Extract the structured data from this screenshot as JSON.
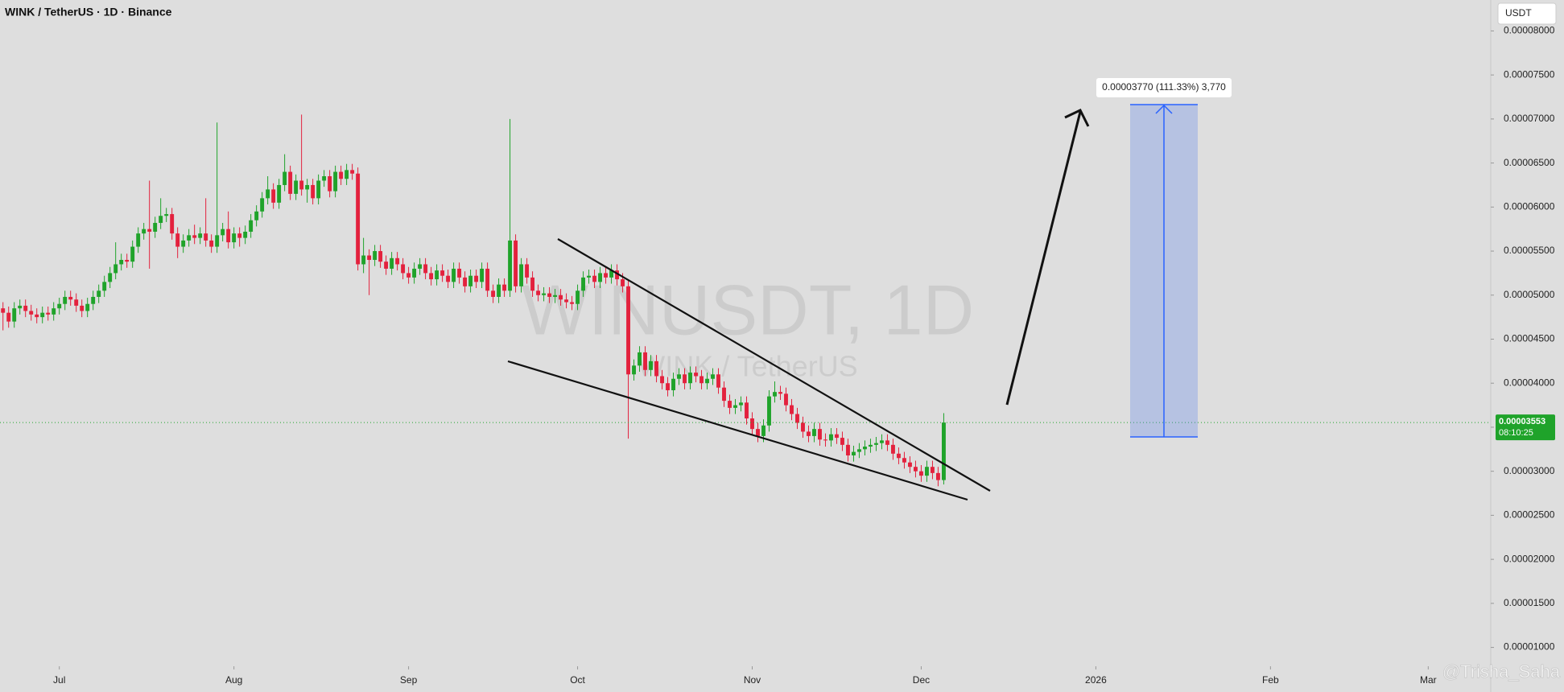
{
  "header": {
    "title": "WINK / TetherUS · 1D · Binance",
    "currency": "USDT"
  },
  "chart_data": {
    "type": "candlestick",
    "watermark": "WINUSDT, 1D",
    "watermark_sub": "WINK / TetherUS",
    "measure_label": "0.00003770 (111.33%) 3,770",
    "countdown": "08:10:25",
    "up_color": "#1fa32a",
    "down_color": "#e3213d",
    "xlim": [
      -0.53,
      264.1
    ],
    "xticks": [
      {
        "value": 10,
        "label": "Jul"
      },
      {
        "value": 41,
        "label": "Aug"
      },
      {
        "value": 72,
        "label": "Sep"
      },
      {
        "value": 102,
        "label": "Oct"
      },
      {
        "value": 133,
        "label": "Nov"
      },
      {
        "value": 163,
        "label": "Dec"
      },
      {
        "value": 194,
        "label": "2026"
      },
      {
        "value": 225,
        "label": "Feb"
      },
      {
        "value": 253,
        "label": "Mar"
      }
    ],
    "ylim": [
      7.86e-06,
      8.351e-05
    ],
    "yticks": [
      {
        "value": 8e-05,
        "label": "0.00008000"
      },
      {
        "value": 7.5e-05,
        "label": "0.00007500"
      },
      {
        "value": 7e-05,
        "label": "0.00007000"
      },
      {
        "value": 6.5e-05,
        "label": "0.00006500"
      },
      {
        "value": 6e-05,
        "label": "0.00006000"
      },
      {
        "value": 5.5e-05,
        "label": "0.00005500"
      },
      {
        "value": 5e-05,
        "label": "0.00005000"
      },
      {
        "value": 4.5e-05,
        "label": "0.00004500"
      },
      {
        "value": 4e-05,
        "label": "0.00004000"
      },
      {
        "value": 3.5e-05,
        "label": "0.00003500"
      },
      {
        "value": 3e-05,
        "label": "0.00003000"
      },
      {
        "value": 2.5e-05,
        "label": "0.00002500"
      },
      {
        "value": 2e-05,
        "label": "0.00002000"
      },
      {
        "value": 1.5e-05,
        "label": "0.00001500"
      },
      {
        "value": 1e-05,
        "label": "0.00001000"
      }
    ],
    "series": [
      {
        "open": [
          4.85e-05,
          4.8e-05,
          4.7e-05,
          4.85e-05,
          4.88e-05,
          4.82e-05,
          4.78e-05,
          4.75e-05,
          4.8e-05,
          4.78e-05,
          4.85e-05,
          4.9e-05,
          4.98e-05,
          4.95e-05,
          4.88e-05,
          4.82e-05,
          4.9e-05,
          4.98e-05,
          5.05e-05,
          5.15e-05,
          5.25e-05,
          5.35e-05,
          5.4e-05,
          5.38e-05,
          5.55e-05,
          5.7e-05,
          5.75e-05,
          5.72e-05,
          5.82e-05,
          5.9e-05,
          5.92e-05,
          5.7e-05,
          5.55e-05,
          5.62e-05,
          5.68e-05,
          5.65e-05,
          5.7e-05,
          5.62e-05,
          5.55e-05,
          5.68e-05,
          5.75e-05,
          5.6e-05,
          5.7e-05,
          5.65e-05,
          5.72e-05,
          5.85e-05,
          5.95e-05,
          6.1e-05,
          6.2e-05,
          6.05e-05,
          6.25e-05,
          6.4e-05,
          6.15e-05,
          6.3e-05,
          6.2e-05,
          6.25e-05,
          6.1e-05,
          6.3e-05,
          6.35e-05,
          6.18e-05,
          6.4e-05,
          6.32e-05,
          6.42e-05,
          6.38e-05,
          5.35e-05,
          5.45e-05,
          5.4e-05,
          5.5e-05,
          5.38e-05,
          5.3e-05,
          5.42e-05,
          5.35e-05,
          5.25e-05,
          5.2e-05,
          5.3e-05,
          5.35e-05,
          5.25e-05,
          5.18e-05,
          5.28e-05,
          5.22e-05,
          5.15e-05,
          5.3e-05,
          5.2e-05,
          5.1e-05,
          5.22e-05,
          5.15e-05,
          5.3e-05,
          5.05e-05,
          4.98e-05,
          5.12e-05,
          5.05e-05,
          5.62e-05,
          5.1e-05,
          5.35e-05,
          5.2e-05,
          5.05e-05,
          5e-05,
          5.02e-05,
          4.98e-05,
          5e-05,
          4.95e-05,
          4.92e-05,
          4.9e-05,
          5.05e-05,
          5.2e-05,
          5.22e-05,
          5.15e-05,
          5.25e-05,
          5.2e-05,
          5.28e-05,
          5.18e-05,
          5.1e-05,
          4.1e-05,
          4.2e-05,
          4.35e-05,
          4.15e-05,
          4.25e-05,
          4.08e-05,
          4e-05,
          3.92e-05,
          4.05e-05,
          4.1e-05,
          4e-05,
          4.12e-05,
          4.08e-05,
          4e-05,
          4.05e-05,
          4.1e-05,
          3.95e-05,
          3.8e-05,
          3.72e-05,
          3.75e-05,
          3.78e-05,
          3.6e-05,
          3.48e-05,
          3.4e-05,
          3.52e-05,
          3.85e-05,
          3.9e-05,
          3.88e-05,
          3.75e-05,
          3.65e-05,
          3.55e-05,
          3.45e-05,
          3.4e-05,
          3.48e-05,
          3.36e-05,
          3.35e-05,
          3.42e-05,
          3.38e-05,
          3.3e-05,
          3.18e-05,
          3.22e-05,
          3.25e-05,
          3.28e-05,
          3.3e-05,
          3.32e-05,
          3.35e-05,
          3.3e-05,
          3.2e-05,
          3.15e-05,
          3.1e-05,
          3.05e-05,
          3e-05,
          2.95e-05,
          3.05e-05,
          2.98e-05,
          2.9e-05
        ],
        "high": [
          4.92e-05,
          4.87e-05,
          4.92e-05,
          4.95e-05,
          4.95e-05,
          4.89e-05,
          4.85e-05,
          4.87e-05,
          4.87e-05,
          4.92e-05,
          4.97e-05,
          5.05e-05,
          5.05e-05,
          5.02e-05,
          4.95e-05,
          4.97e-05,
          5.05e-05,
          5.12e-05,
          5.22e-05,
          5.32e-05,
          5.6e-05,
          5.47e-05,
          5.47e-05,
          5.62e-05,
          5.77e-05,
          5.82e-05,
          6.3e-05,
          5.89e-05,
          6.1e-05,
          5.99e-05,
          5.99e-05,
          5.77e-05,
          5.69e-05,
          5.75e-05,
          5.8e-05,
          5.77e-05,
          6.1e-05,
          5.69e-05,
          6.96e-05,
          5.82e-05,
          5.95e-05,
          5.77e-05,
          5.77e-05,
          5.79e-05,
          5.92e-05,
          6.02e-05,
          6.17e-05,
          6.35e-05,
          6.27e-05,
          6.32e-05,
          6.6e-05,
          6.47e-05,
          6.37e-05,
          7.05e-05,
          6.32e-05,
          6.32e-05,
          6.37e-05,
          6.42e-05,
          6.42e-05,
          6.47e-05,
          6.47e-05,
          6.49e-05,
          6.49e-05,
          6.45e-05,
          5.65e-05,
          5.52e-05,
          5.57e-05,
          5.57e-05,
          5.45e-05,
          5.49e-05,
          5.49e-05,
          5.42e-05,
          5.32e-05,
          5.37e-05,
          5.42e-05,
          5.42e-05,
          5.32e-05,
          5.35e-05,
          5.35e-05,
          5.29e-05,
          5.37e-05,
          5.37e-05,
          5.27e-05,
          5.29e-05,
          5.29e-05,
          5.37e-05,
          5.37e-05,
          5.12e-05,
          5.19e-05,
          5.19e-05,
          7e-05,
          5.69e-05,
          5.42e-05,
          5.42e-05,
          5.27e-05,
          5.12e-05,
          5.09e-05,
          5.09e-05,
          5.07e-05,
          5.07e-05,
          5.02e-05,
          4.99e-05,
          5.12e-05,
          5.27e-05,
          5.29e-05,
          5.29e-05,
          5.32e-05,
          5.32e-05,
          5.35e-05,
          5.35e-05,
          5.25e-05,
          5.17e-05,
          4.27e-05,
          4.42e-05,
          4.42e-05,
          4.32e-05,
          4.32e-05,
          4.15e-05,
          4.07e-05,
          4.12e-05,
          4.17e-05,
          4.17e-05,
          4.19e-05,
          4.19e-05,
          4.15e-05,
          4.12e-05,
          4.17e-05,
          4.17e-05,
          4.02e-05,
          3.87e-05,
          3.82e-05,
          3.85e-05,
          3.85e-05,
          3.67e-05,
          3.55e-05,
          3.59e-05,
          3.92e-05,
          4.02e-05,
          3.97e-05,
          3.95e-05,
          3.82e-05,
          3.72e-05,
          3.62e-05,
          3.52e-05,
          3.55e-05,
          3.55e-05,
          3.43e-05,
          3.49e-05,
          3.49e-05,
          3.45e-05,
          3.37e-05,
          3.29e-05,
          3.32e-05,
          3.35e-05,
          3.37e-05,
          3.39e-05,
          3.42e-05,
          3.42e-05,
          3.37e-05,
          3.27e-05,
          3.22e-05,
          3.17e-05,
          3.12e-05,
          3.07e-05,
          3.12e-05,
          3.12e-05,
          3.05e-05,
          3.66e-05
        ],
        "low": [
          4.6e-05,
          4.63e-05,
          4.63e-05,
          4.78e-05,
          4.75e-05,
          4.71e-05,
          4.68e-05,
          4.68e-05,
          4.71e-05,
          4.71e-05,
          4.78e-05,
          4.83e-05,
          4.88e-05,
          4.81e-05,
          4.75e-05,
          4.75e-05,
          4.83e-05,
          4.91e-05,
          4.98e-05,
          5.08e-05,
          5.18e-05,
          5.28e-05,
          5.31e-05,
          5.31e-05,
          5.48e-05,
          5.63e-05,
          5.3e-05,
          5.65e-05,
          5.75e-05,
          5.83e-05,
          5.63e-05,
          5.42e-05,
          5.48e-05,
          5.55e-05,
          5.58e-05,
          5.58e-05,
          5.55e-05,
          5.48e-05,
          5.48e-05,
          5.61e-05,
          5.53e-05,
          5.53e-05,
          5.55e-05,
          5.58e-05,
          5.65e-05,
          5.78e-05,
          5.88e-05,
          6.03e-05,
          5.98e-05,
          5.98e-05,
          6.18e-05,
          6.08e-05,
          6.08e-05,
          6.13e-05,
          6.05e-05,
          6.03e-05,
          6.03e-05,
          6.23e-05,
          6.11e-05,
          6.11e-05,
          6.25e-05,
          6.25e-05,
          6.31e-05,
          5.28e-05,
          5.25e-05,
          5e-05,
          5.33e-05,
          5.31e-05,
          5.23e-05,
          5.23e-05,
          5.28e-05,
          5.18e-05,
          5.13e-05,
          5.13e-05,
          5.23e-05,
          5.18e-05,
          5.11e-05,
          5.11e-05,
          5.15e-05,
          5.08e-05,
          5.08e-05,
          5.13e-05,
          5.03e-05,
          5.03e-05,
          5.08e-05,
          5.08e-05,
          4.98e-05,
          4.91e-05,
          4.91e-05,
          4.98e-05,
          4.98e-05,
          5.03e-05,
          5.03e-05,
          5.13e-05,
          4.98e-05,
          4.93e-05,
          4.93e-05,
          4.91e-05,
          4.91e-05,
          4.88e-05,
          4.85e-05,
          4.83e-05,
          4.83e-05,
          4.98e-05,
          5.13e-05,
          5.08e-05,
          5.08e-05,
          5.13e-05,
          5.13e-05,
          5.11e-05,
          5.03e-05,
          3.37e-05,
          4.03e-05,
          4.13e-05,
          4.08e-05,
          4.08e-05,
          4.01e-05,
          3.93e-05,
          3.85e-05,
          3.85e-05,
          3.98e-05,
          3.93e-05,
          3.93e-05,
          4.01e-05,
          3.93e-05,
          3.93e-05,
          3.98e-05,
          3.88e-05,
          3.73e-05,
          3.65e-05,
          3.65e-05,
          3.68e-05,
          3.53e-05,
          3.41e-05,
          3.33e-05,
          3.33e-05,
          3.45e-05,
          3.78e-05,
          3.81e-05,
          3.68e-05,
          3.58e-05,
          3.48e-05,
          3.38e-05,
          3.33e-05,
          3.33e-05,
          3.29e-05,
          3.28e-05,
          3.28e-05,
          3.31e-05,
          3.23e-05,
          3.11e-05,
          3.11e-05,
          3.15e-05,
          3.18e-05,
          3.21e-05,
          3.23e-05,
          3.25e-05,
          3.23e-05,
          3.13e-05,
          3.08e-05,
          3.03e-05,
          2.98e-05,
          2.93e-05,
          2.88e-05,
          2.88e-05,
          2.91e-05,
          2.83e-05,
          2.85e-05
        ],
        "close": [
          4.8e-05,
          4.7e-05,
          4.85e-05,
          4.88e-05,
          4.82e-05,
          4.78e-05,
          4.75e-05,
          4.8e-05,
          4.78e-05,
          4.85e-05,
          4.9e-05,
          4.98e-05,
          4.95e-05,
          4.88e-05,
          4.82e-05,
          4.9e-05,
          4.98e-05,
          5.05e-05,
          5.15e-05,
          5.25e-05,
          5.35e-05,
          5.4e-05,
          5.38e-05,
          5.55e-05,
          5.7e-05,
          5.75e-05,
          5.72e-05,
          5.82e-05,
          5.9e-05,
          5.92e-05,
          5.7e-05,
          5.55e-05,
          5.62e-05,
          5.68e-05,
          5.65e-05,
          5.7e-05,
          5.62e-05,
          5.55e-05,
          5.68e-05,
          5.75e-05,
          5.6e-05,
          5.7e-05,
          5.65e-05,
          5.72e-05,
          5.85e-05,
          5.95e-05,
          6.1e-05,
          6.2e-05,
          6.05e-05,
          6.25e-05,
          6.4e-05,
          6.15e-05,
          6.3e-05,
          6.2e-05,
          6.25e-05,
          6.1e-05,
          6.3e-05,
          6.35e-05,
          6.18e-05,
          6.4e-05,
          6.32e-05,
          6.42e-05,
          6.38e-05,
          5.35e-05,
          5.45e-05,
          5.4e-05,
          5.5e-05,
          5.38e-05,
          5.3e-05,
          5.42e-05,
          5.35e-05,
          5.25e-05,
          5.2e-05,
          5.3e-05,
          5.35e-05,
          5.25e-05,
          5.18e-05,
          5.28e-05,
          5.22e-05,
          5.15e-05,
          5.3e-05,
          5.2e-05,
          5.1e-05,
          5.22e-05,
          5.15e-05,
          5.3e-05,
          5.05e-05,
          4.98e-05,
          5.12e-05,
          5.05e-05,
          5.62e-05,
          5.1e-05,
          5.35e-05,
          5.2e-05,
          5.05e-05,
          5e-05,
          5.02e-05,
          4.98e-05,
          5e-05,
          4.95e-05,
          4.92e-05,
          4.9e-05,
          5.05e-05,
          5.2e-05,
          5.22e-05,
          5.15e-05,
          5.25e-05,
          5.2e-05,
          5.28e-05,
          5.18e-05,
          5.1e-05,
          4.1e-05,
          4.2e-05,
          4.35e-05,
          4.15e-05,
          4.25e-05,
          4.08e-05,
          4e-05,
          3.92e-05,
          4.05e-05,
          4.1e-05,
          4e-05,
          4.12e-05,
          4.08e-05,
          4e-05,
          4.05e-05,
          4.1e-05,
          3.95e-05,
          3.8e-05,
          3.72e-05,
          3.75e-05,
          3.78e-05,
          3.6e-05,
          3.48e-05,
          3.4e-05,
          3.52e-05,
          3.85e-05,
          3.9e-05,
          3.88e-05,
          3.75e-05,
          3.65e-05,
          3.55e-05,
          3.45e-05,
          3.4e-05,
          3.48e-05,
          3.36e-05,
          3.35e-05,
          3.42e-05,
          3.38e-05,
          3.3e-05,
          3.18e-05,
          3.22e-05,
          3.25e-05,
          3.28e-05,
          3.3e-05,
          3.32e-05,
          3.35e-05,
          3.3e-05,
          3.2e-05,
          3.15e-05,
          3.1e-05,
          3.05e-05,
          3e-05,
          2.95e-05,
          3.05e-05,
          2.98e-05,
          2.9e-05,
          3.553e-05
        ]
      }
    ]
  },
  "credit": "@Trisha_Saha"
}
